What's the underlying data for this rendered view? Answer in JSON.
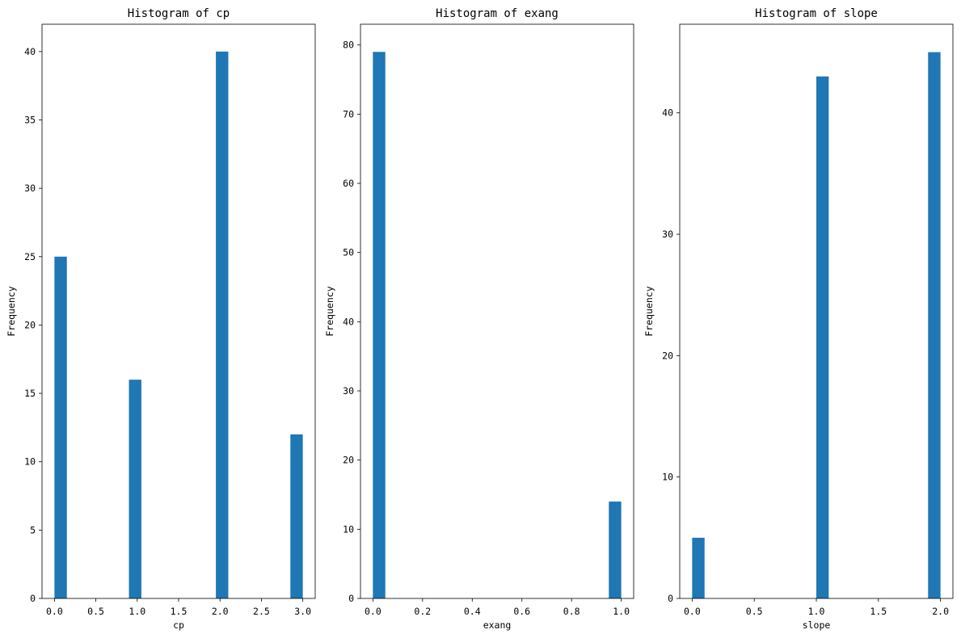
{
  "chart_data": [
    {
      "type": "bar",
      "title": "Histogram of cp",
      "xlabel": "cp",
      "ylabel": "Frequency",
      "bins": 20,
      "bars": [
        {
          "x_start": 0.0,
          "x_end": 0.15,
          "count": 25
        },
        {
          "x_start": 0.9,
          "x_end": 1.05,
          "count": 16
        },
        {
          "x_start": 1.95,
          "x_end": 2.1,
          "count": 40
        },
        {
          "x_start": 2.85,
          "x_end": 3.0,
          "count": 12
        }
      ],
      "xlim": [
        -0.15,
        3.15
      ],
      "ylim": [
        0,
        42
      ],
      "xticks": [
        0.0,
        0.5,
        1.0,
        1.5,
        2.0,
        2.5,
        3.0
      ],
      "xtick_labels": [
        "0.0",
        "0.5",
        "1.0",
        "1.5",
        "2.0",
        "2.5",
        "3.0"
      ],
      "yticks": [
        0,
        5,
        10,
        15,
        20,
        25,
        30,
        35,
        40
      ],
      "ytick_labels": [
        "0",
        "5",
        "10",
        "15",
        "20",
        "25",
        "30",
        "35",
        "40"
      ],
      "grid": false,
      "color": "#1f77b4"
    },
    {
      "type": "bar",
      "title": "Histogram of exang",
      "xlabel": "exang",
      "ylabel": "Frequency",
      "bins": 20,
      "bars": [
        {
          "x_start": 0.0,
          "x_end": 0.05,
          "count": 79
        },
        {
          "x_start": 0.95,
          "x_end": 1.0,
          "count": 14
        }
      ],
      "xlim": [
        -0.05,
        1.05
      ],
      "ylim": [
        0,
        83
      ],
      "xticks": [
        0.0,
        0.2,
        0.4,
        0.6,
        0.8,
        1.0
      ],
      "xtick_labels": [
        "0.0",
        "0.2",
        "0.4",
        "0.6",
        "0.8",
        "1.0"
      ],
      "yticks": [
        0,
        10,
        20,
        30,
        40,
        50,
        60,
        70,
        80
      ],
      "ytick_labels": [
        "0",
        "10",
        "20",
        "30",
        "40",
        "50",
        "60",
        "70",
        "80"
      ],
      "grid": false,
      "color": "#1f77b4"
    },
    {
      "type": "bar",
      "title": "Histogram of slope",
      "xlabel": "slope",
      "ylabel": "Frequency",
      "bins": 20,
      "bars": [
        {
          "x_start": 0.0,
          "x_end": 0.1,
          "count": 5
        },
        {
          "x_start": 1.0,
          "x_end": 1.1,
          "count": 43
        },
        {
          "x_start": 1.9,
          "x_end": 2.0,
          "count": 45
        }
      ],
      "xlim": [
        -0.1,
        2.1
      ],
      "ylim": [
        0,
        47.3
      ],
      "xticks": [
        0.0,
        0.5,
        1.0,
        1.5,
        2.0
      ],
      "xtick_labels": [
        "0.0",
        "0.5",
        "1.0",
        "1.5",
        "2.0"
      ],
      "yticks": [
        0,
        10,
        20,
        30,
        40
      ],
      "ytick_labels": [
        "0",
        "10",
        "20",
        "30",
        "40"
      ],
      "grid": false,
      "color": "#1f77b4"
    }
  ]
}
